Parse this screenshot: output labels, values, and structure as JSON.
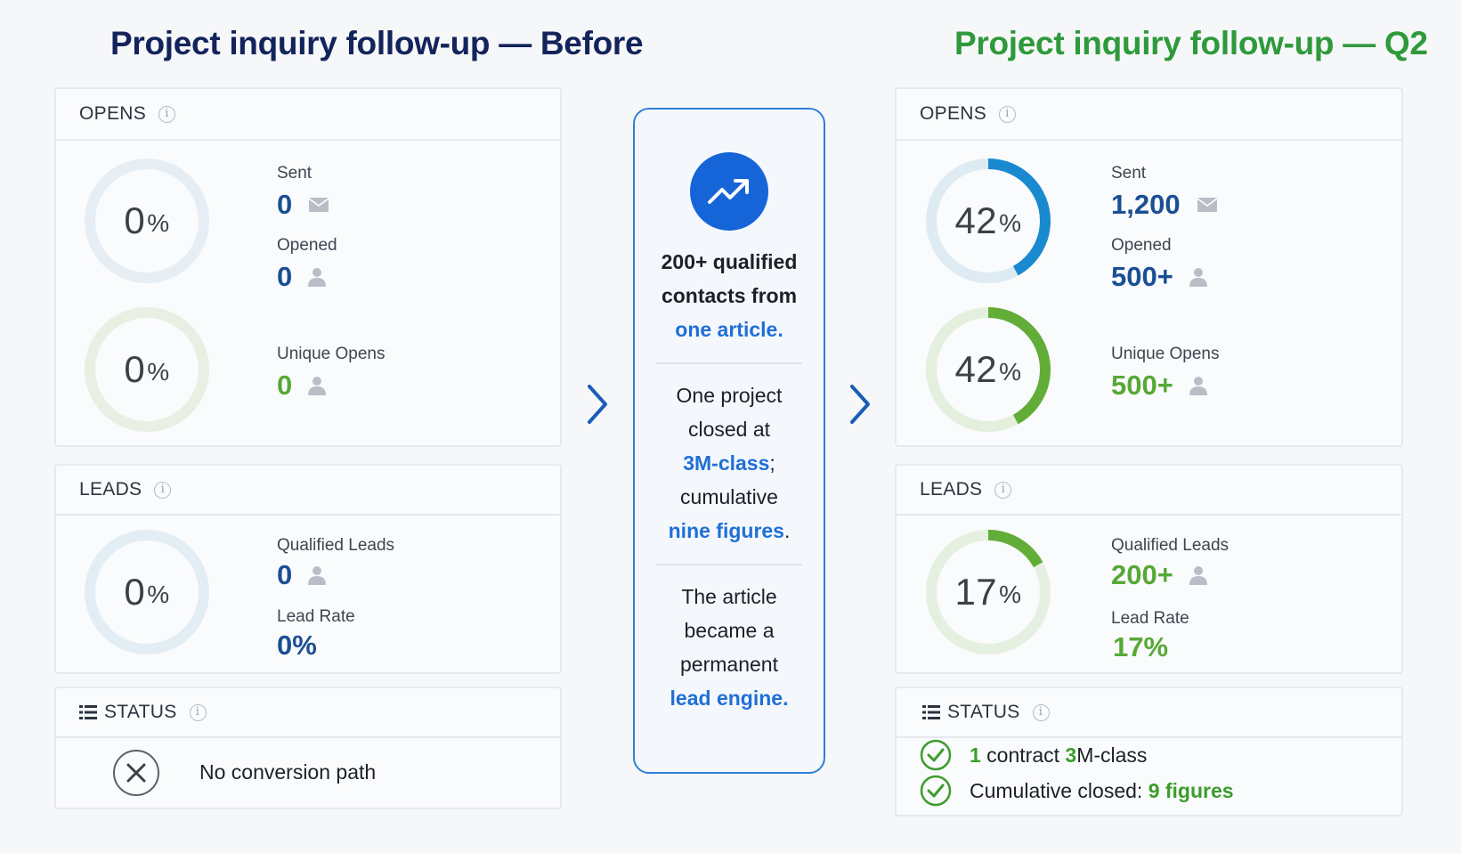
{
  "left": {
    "title": "Project inquiry follow-up — Before",
    "opens": {
      "header": "OPENS",
      "ring1": {
        "value": "0",
        "unit": "%",
        "fraction": 0
      },
      "ring2": {
        "value": "0",
        "unit": "%",
        "fraction": 0
      },
      "sent_label": "Sent",
      "sent_value": "0",
      "opened_label": "Opened",
      "opened_value": "0",
      "unique_label": "Unique Opens",
      "unique_value": "0"
    },
    "leads": {
      "header": "LEADS",
      "ring": {
        "value": "0",
        "unit": "%",
        "fraction": 0
      },
      "qualified_label": "Qualified Leads",
      "qualified_value": "0",
      "rate_label": "Lead Rate",
      "rate_value": "0%"
    },
    "status": {
      "header": "STATUS",
      "message": "No conversion path"
    }
  },
  "center": {
    "block1": [
      "200+ qualified",
      "contacts from"
    ],
    "block1_hl": "one article.",
    "block2": [
      "One project",
      "closed at"
    ],
    "block2_hl1": "3M-class",
    "block2_mid": ";",
    "block2_line": "cumulative",
    "block2_hl2": "nine figures",
    "block2_end": ".",
    "block3": [
      "The article",
      "became a",
      "permanent"
    ],
    "block3_hl": "lead engine."
  },
  "right": {
    "title": "Project inquiry follow-up — Q2",
    "opens": {
      "header": "OPENS",
      "ring1": {
        "value": "42",
        "unit": "%",
        "fraction": 0.42
      },
      "ring2": {
        "value": "42",
        "unit": "%",
        "fraction": 0.42
      },
      "sent_label": "Sent",
      "sent_value": "1,200",
      "opened_label": "Opened",
      "opened_value": "500+",
      "unique_label": "Unique Opens",
      "unique_value": "500+"
    },
    "leads": {
      "header": "LEADS",
      "ring": {
        "value": "17",
        "unit": "%",
        "fraction": 0.17
      },
      "qualified_label": "Qualified Leads",
      "qualified_value": "200+",
      "rate_label": "Lead Rate",
      "rate_value": "17%"
    },
    "status": {
      "header": "STATUS",
      "row1_count": "1",
      "row1_text": " contract ",
      "row1_hl": "3",
      "row1_tail": "M-class",
      "row2_text": "Cumulative closed: ",
      "row2_hl": "9 figures"
    }
  },
  "colors": {
    "ring_blue_track": "#e3edf4",
    "ring_blue": "#1a8ad0",
    "ring_green_track": "#e6f0e0",
    "ring_green": "#62ad38",
    "accent_blue": "#1f6fd6",
    "accent_green": "#2e9a3b"
  }
}
